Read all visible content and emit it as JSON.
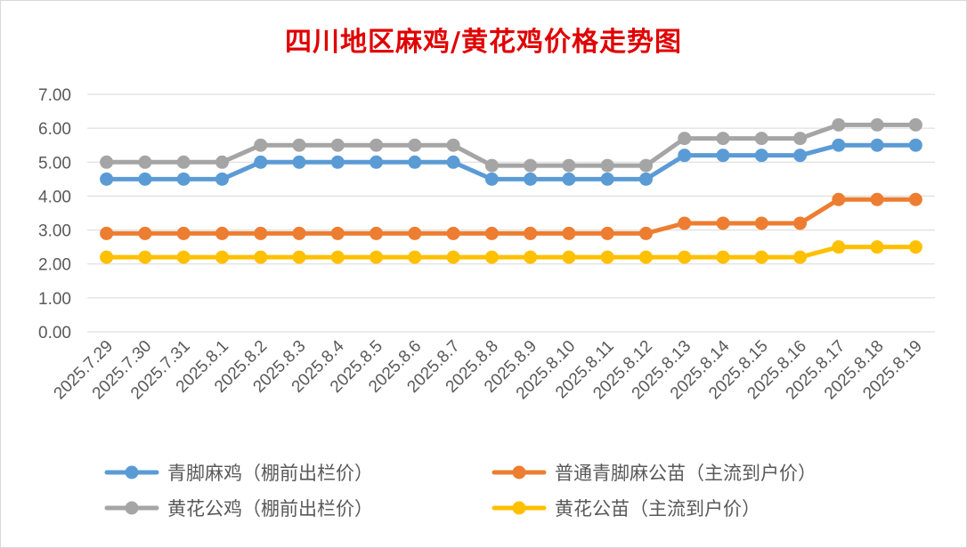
{
  "chart_data": {
    "type": "line",
    "title": "四川地区麻鸡/黄花鸡价格走势图",
    "xlabel": "",
    "ylabel": "",
    "ylim": [
      0,
      7
    ],
    "yticks": [
      "0.00",
      "1.00",
      "2.00",
      "3.00",
      "4.00",
      "5.00",
      "6.00",
      "7.00"
    ],
    "grid": "horizontal",
    "legend_position": "bottom",
    "categories": [
      "2025.7.29",
      "2025.7.30",
      "2025.7.31",
      "2025.8.1",
      "2025.8.2",
      "2025.8.3",
      "2025.8.4",
      "2025.8.5",
      "2025.8.6",
      "2025.8.7",
      "2025.8.8",
      "2025.8.9",
      "2025.8.10",
      "2025.8.11",
      "2025.8.12",
      "2025.8.13",
      "2025.8.14",
      "2025.8.15",
      "2025.8.16",
      "2025.8.17",
      "2025.8.18",
      "2025.8.19"
    ],
    "series": [
      {
        "name": "青脚麻鸡（棚前出栏价）",
        "color": "#5b9bd5",
        "values": [
          4.5,
          4.5,
          4.5,
          4.5,
          5.0,
          5.0,
          5.0,
          5.0,
          5.0,
          5.0,
          4.5,
          4.5,
          4.5,
          4.5,
          4.5,
          5.2,
          5.2,
          5.2,
          5.2,
          5.5,
          5.5,
          5.5
        ]
      },
      {
        "name": "普通青脚麻公苗（主流到户价）",
        "color": "#ed7d31",
        "values": [
          2.9,
          2.9,
          2.9,
          2.9,
          2.9,
          2.9,
          2.9,
          2.9,
          2.9,
          2.9,
          2.9,
          2.9,
          2.9,
          2.9,
          2.9,
          3.2,
          3.2,
          3.2,
          3.2,
          3.9,
          3.9,
          3.9
        ]
      },
      {
        "name": "黄花公鸡（棚前出栏价）",
        "color": "#a5a5a5",
        "values": [
          5.0,
          5.0,
          5.0,
          5.0,
          5.5,
          5.5,
          5.5,
          5.5,
          5.5,
          5.5,
          4.9,
          4.9,
          4.9,
          4.9,
          4.9,
          5.7,
          5.7,
          5.7,
          5.7,
          6.1,
          6.1,
          6.1
        ]
      },
      {
        "name": "黄花公苗（主流到户价）",
        "color": "#ffc000",
        "values": [
          2.2,
          2.2,
          2.2,
          2.2,
          2.2,
          2.2,
          2.2,
          2.2,
          2.2,
          2.2,
          2.2,
          2.2,
          2.2,
          2.2,
          2.2,
          2.2,
          2.2,
          2.2,
          2.2,
          2.5,
          2.5,
          2.5
        ]
      }
    ]
  }
}
